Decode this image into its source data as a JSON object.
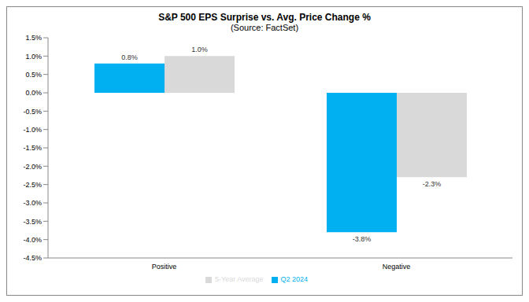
{
  "chart_data": {
    "type": "bar",
    "title": "S&P 500 EPS Surprise vs. Avg. Price Change %",
    "subtitle": "(Source: FactSet)",
    "categories": [
      "Positive",
      "Negative"
    ],
    "series": [
      {
        "name": "Q2 2024",
        "color": "#00b0f0",
        "values": [
          0.8,
          -3.8
        ],
        "value_labels": [
          "0.8%",
          "-3.8%"
        ]
      },
      {
        "name": "5-Year Average",
        "color": "#d9d9d9",
        "values": [
          1.0,
          -2.3
        ],
        "value_labels": [
          "1.0%",
          "-2.3%"
        ]
      }
    ],
    "ylim": [
      -4.5,
      1.5
    ],
    "yticks": [
      {
        "value": -4.5,
        "label": "-4.5%"
      },
      {
        "value": -4.0,
        "label": "-4.0%"
      },
      {
        "value": -3.5,
        "label": "-3.5%"
      },
      {
        "value": -3.0,
        "label": "-3.0%"
      },
      {
        "value": -2.5,
        "label": "-2.5%"
      },
      {
        "value": -2.0,
        "label": "-2.0%"
      },
      {
        "value": -1.5,
        "label": "-1.5%"
      },
      {
        "value": -1.0,
        "label": "-1.0%"
      },
      {
        "value": -0.5,
        "label": "-0.5%"
      },
      {
        "value": 0.0,
        "label": "0.0%"
      },
      {
        "value": 0.5,
        "label": "0.5%"
      },
      {
        "value": 1.0,
        "label": "1.0%"
      },
      {
        "value": 1.5,
        "label": "1.5%"
      }
    ],
    "grid": false,
    "legend": "bottom",
    "data_labels": true
  }
}
